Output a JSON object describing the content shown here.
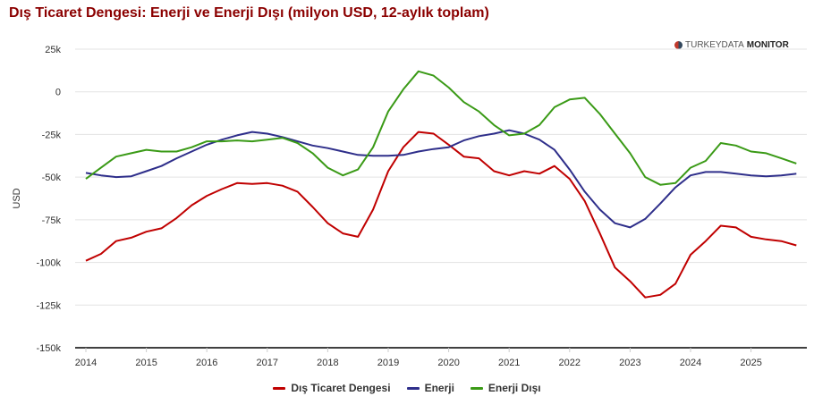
{
  "title": "Dış Ticaret Dengesi: Enerji ve Enerji Dışı (milyon USD, 12-aylık toplam)",
  "logo": {
    "light": "TURKEYDATA",
    "bold": "MONITOR"
  },
  "chart_data": {
    "type": "line",
    "title": "Dış Ticaret Dengesi: Enerji ve Enerji Dışı (milyon USD, 12-aylık toplam)",
    "xlabel": "",
    "ylabel": "USD",
    "ylim": [
      -150000,
      25000
    ],
    "yticks": [
      25000,
      0,
      -25000,
      -50000,
      -75000,
      -100000,
      -125000,
      -150000
    ],
    "ytick_labels": [
      "25k",
      "0",
      "-25k",
      "-50k",
      "-75k",
      "-100k",
      "-125k",
      "-150k"
    ],
    "xtick_labels": [
      "2014",
      "2015",
      "2016",
      "2017",
      "2018",
      "2019",
      "2020",
      "2021",
      "2022",
      "2023",
      "2024",
      "2025"
    ],
    "grid": true,
    "legend": "bottom",
    "x": [
      "2014-01",
      "2014-04",
      "2014-07",
      "2014-10",
      "2015-01",
      "2015-04",
      "2015-07",
      "2015-10",
      "2016-01",
      "2016-04",
      "2016-07",
      "2016-10",
      "2017-01",
      "2017-04",
      "2017-07",
      "2017-10",
      "2018-01",
      "2018-04",
      "2018-07",
      "2018-10",
      "2019-01",
      "2019-04",
      "2019-07",
      "2019-10",
      "2020-01",
      "2020-04",
      "2020-07",
      "2020-10",
      "2021-01",
      "2021-04",
      "2021-07",
      "2021-10",
      "2022-01",
      "2022-04",
      "2022-07",
      "2022-10",
      "2023-01",
      "2023-04",
      "2023-07",
      "2023-10",
      "2024-01",
      "2024-04",
      "2024-07",
      "2024-10",
      "2025-01",
      "2025-04",
      "2025-07",
      "2025-10"
    ],
    "series": [
      {
        "name": "Dış Ticaret Dengesi",
        "color": "#c00000",
        "values": [
          -99000,
          -95000,
          -87500,
          -85500,
          -82000,
          -80000,
          -74000,
          -66500,
          -61000,
          -57000,
          -53500,
          -54000,
          -53500,
          -55000,
          -58500,
          -67500,
          -77000,
          -83000,
          -85000,
          -69000,
          -46500,
          -32500,
          -23500,
          -24500,
          -31000,
          -38000,
          -39000,
          -46500,
          -49000,
          -46500,
          -48000,
          -43500,
          -51000,
          -64000,
          -83000,
          -103000,
          -111000,
          -120500,
          -119000,
          -112500,
          -95500,
          -87500,
          -78500,
          -79500,
          -85000,
          -86500,
          -87500,
          -90000
        ]
      },
      {
        "name": "Enerji",
        "color": "#2e2e8a",
        "values": [
          -47500,
          -49000,
          -50000,
          -49500,
          -46500,
          -43500,
          -39000,
          -35000,
          -31000,
          -28000,
          -25500,
          -23500,
          -24500,
          -26500,
          -29000,
          -31500,
          -33000,
          -35000,
          -37000,
          -37500,
          -37500,
          -37000,
          -35000,
          -33500,
          -32500,
          -28500,
          -26000,
          -24500,
          -22500,
          -24500,
          -28000,
          -34000,
          -45500,
          -58500,
          -69000,
          -77000,
          -79500,
          -74500,
          -65500,
          -56000,
          -49000,
          -47000,
          -47000,
          -48000,
          -49000,
          -49500,
          -49000,
          -48000
        ]
      },
      {
        "name": "Enerji Dışı",
        "color": "#3a9a16",
        "values": [
          -51000,
          -44500,
          -38000,
          -36000,
          -34000,
          -35000,
          -35000,
          -32500,
          -29000,
          -29000,
          -28500,
          -29000,
          -28000,
          -27000,
          -30000,
          -36000,
          -44500,
          -49000,
          -45500,
          -32500,
          -11500,
          1500,
          12000,
          9500,
          2500,
          -6000,
          -11500,
          -19500,
          -25500,
          -24500,
          -19500,
          -9000,
          -4500,
          -3500,
          -13000,
          -24500,
          -36000,
          -50000,
          -54500,
          -53500,
          -44500,
          -40500,
          -30000,
          -31500,
          -35000,
          -36000,
          -39000,
          -42000
        ]
      }
    ]
  }
}
